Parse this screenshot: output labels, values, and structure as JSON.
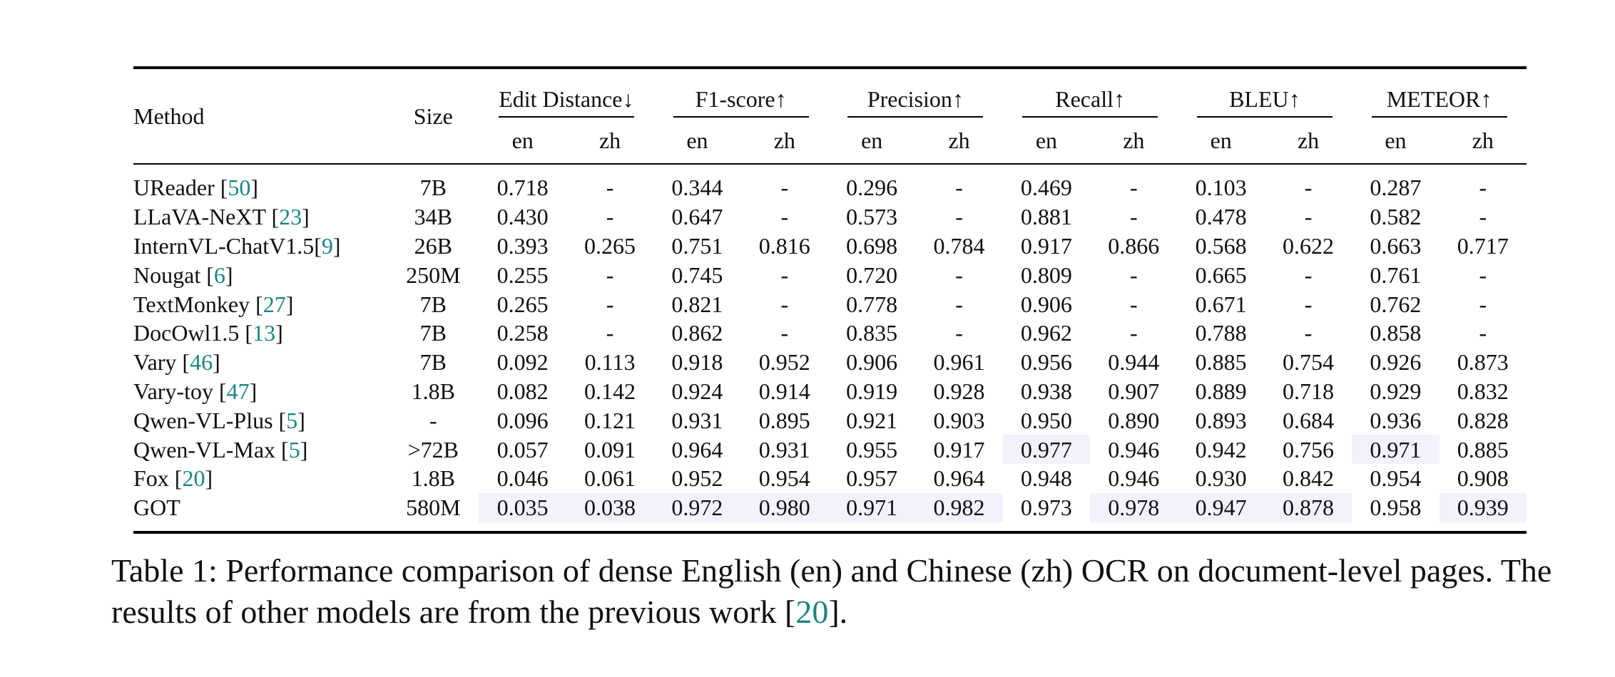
{
  "table": {
    "header": {
      "method": "Method",
      "size": "Size",
      "metrics": [
        "Edit Distance↓",
        "F1-score↑",
        "Precision↑",
        "Recall↑",
        "BLEU↑",
        "METEOR↑"
      ],
      "sub": [
        "en",
        "zh"
      ]
    },
    "rows": [
      {
        "name": "UReader ",
        "ref": "50",
        "after": "",
        "size": "7B",
        "vals": [
          "0.718",
          "-",
          "0.344",
          "-",
          "0.296",
          "-",
          "0.469",
          "-",
          "0.103",
          "-",
          "0.287",
          "-"
        ],
        "bold": []
      },
      {
        "name": "LLaVA-NeXT ",
        "ref": "23",
        "after": "",
        "size": "34B",
        "vals": [
          "0.430",
          "-",
          "0.647",
          "-",
          "0.573",
          "-",
          "0.881",
          "-",
          "0.478",
          "-",
          "0.582",
          "-"
        ],
        "bold": []
      },
      {
        "name": "InternVL-ChatV1.5",
        "ref": "9",
        "after": "",
        "size": "26B",
        "vals": [
          "0.393",
          "0.265",
          "0.751",
          "0.816",
          "0.698",
          "0.784",
          "0.917",
          "0.866",
          "0.568",
          "0.622",
          "0.663",
          "0.717"
        ],
        "bold": []
      },
      {
        "name": "Nougat ",
        "ref": "6",
        "after": "",
        "size": "250M",
        "vals": [
          "0.255",
          "-",
          "0.745",
          "-",
          "0.720",
          "-",
          "0.809",
          "-",
          "0.665",
          "-",
          "0.761",
          "-"
        ],
        "bold": []
      },
      {
        "name": "TextMonkey ",
        "ref": "27",
        "after": "",
        "size": "7B",
        "vals": [
          "0.265",
          "-",
          "0.821",
          "-",
          "0.778",
          "-",
          "0.906",
          "-",
          "0.671",
          "-",
          "0.762",
          "-"
        ],
        "bold": []
      },
      {
        "name": "DocOwl1.5 ",
        "ref": "13",
        "after": "",
        "size": "7B",
        "vals": [
          "0.258",
          "-",
          "0.862",
          "-",
          "0.835",
          "-",
          "0.962",
          "-",
          "0.788",
          "-",
          "0.858",
          "-"
        ],
        "bold": []
      },
      {
        "name": "Vary ",
        "ref": "46",
        "after": "",
        "size": "7B",
        "vals": [
          "0.092",
          "0.113",
          "0.918",
          "0.952",
          "0.906",
          "0.961",
          "0.956",
          "0.944",
          "0.885",
          "0.754",
          "0.926",
          "0.873"
        ],
        "bold": []
      },
      {
        "name": "Vary-toy ",
        "ref": "47",
        "after": "",
        "size": "1.8B",
        "vals": [
          "0.082",
          "0.142",
          "0.924",
          "0.914",
          "0.919",
          "0.928",
          "0.938",
          "0.907",
          "0.889",
          "0.718",
          "0.929",
          "0.832"
        ],
        "bold": []
      },
      {
        "name": "Qwen-VL-Plus ",
        "ref": "5",
        "after": "",
        "size": "-",
        "vals": [
          "0.096",
          "0.121",
          "0.931",
          "0.895",
          "0.921",
          "0.903",
          "0.950",
          "0.890",
          "0.893",
          "0.684",
          "0.936",
          "0.828"
        ],
        "bold": []
      },
      {
        "name": "Qwen-VL-Max ",
        "ref": "5",
        "after": "",
        "size": ">72B",
        "vals": [
          "0.057",
          "0.091",
          "0.964",
          "0.931",
          "0.955",
          "0.917",
          "0.977",
          "0.946",
          "0.942",
          "0.756",
          "0.971",
          "0.885"
        ],
        "bold": [
          6,
          10
        ]
      },
      {
        "name": "Fox ",
        "ref": "20",
        "after": "",
        "size": "1.8B",
        "vals": [
          "0.046",
          "0.061",
          "0.952",
          "0.954",
          "0.957",
          "0.964",
          "0.948",
          "0.946",
          "0.930",
          "0.842",
          "0.954",
          "0.908"
        ],
        "bold": []
      },
      {
        "name": "GOT",
        "ref": "",
        "after": "",
        "size": "580M",
        "vals": [
          "0.035",
          "0.038",
          "0.972",
          "0.980",
          "0.971",
          "0.982",
          "0.973",
          "0.978",
          "0.947",
          "0.878",
          "0.958",
          "0.939"
        ],
        "bold": [
          0,
          1,
          2,
          3,
          4,
          5,
          7,
          8,
          9,
          11
        ]
      }
    ]
  },
  "caption": {
    "prefix": "Table 1: Performance comparison of dense English (en) and Chinese (zh) OCR on document-level pages. The results of other models are from the previous work [",
    "ref": "20",
    "suffix": "]."
  }
}
